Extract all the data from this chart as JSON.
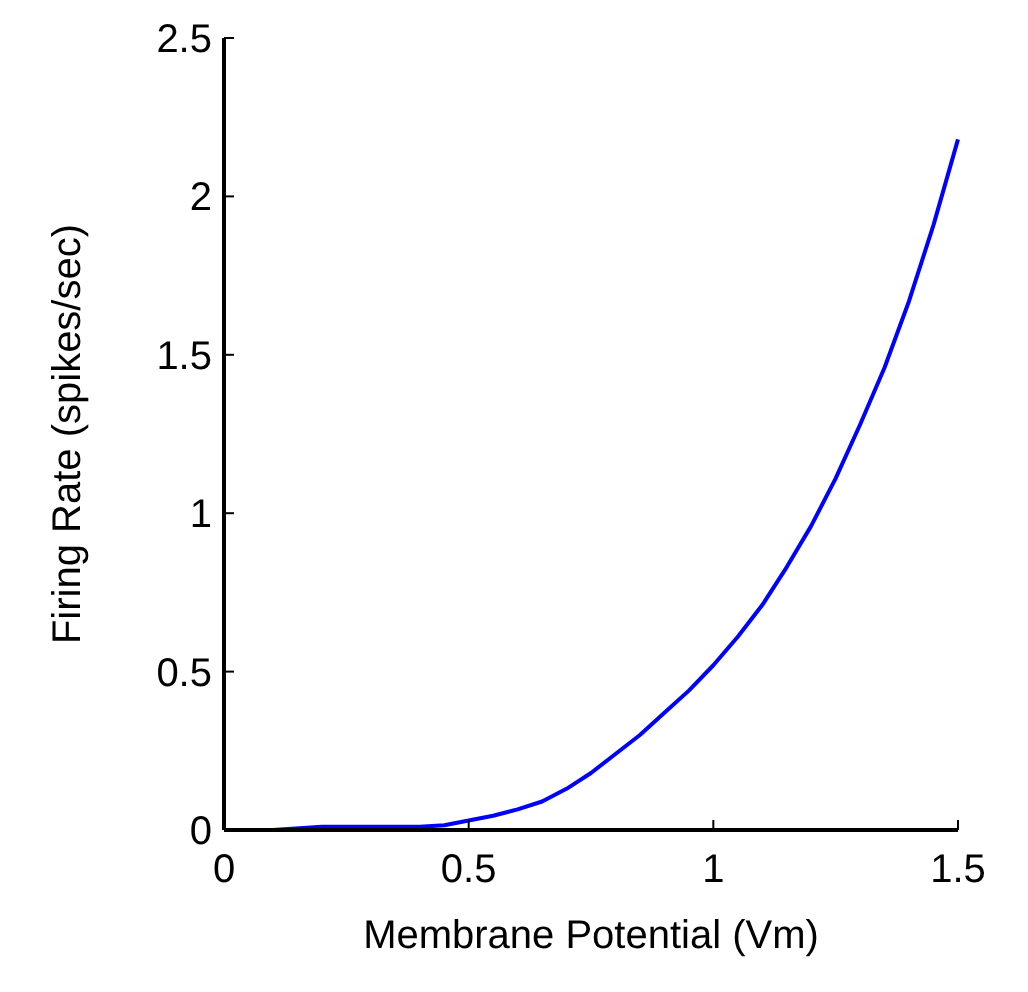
{
  "chart_data": {
    "type": "line",
    "xlabel": "Membrane Potential (Vm)",
    "ylabel": "Firing Rate (spikes/sec)",
    "x": [
      0,
      0.1,
      0.2,
      0.3,
      0.4,
      0.45,
      0.5,
      0.55,
      0.6,
      0.65,
      0.7,
      0.75,
      0.8,
      0.85,
      0.9,
      0.95,
      1.0,
      1.05,
      1.1,
      1.15,
      1.2,
      1.25,
      1.3,
      1.35,
      1.4,
      1.45,
      1.5
    ],
    "series": [
      {
        "color": "#0000ff",
        "values": [
          0,
          0,
          0.01,
          0.01,
          0.01,
          0.015,
          0.03,
          0.045,
          0.065,
          0.09,
          0.13,
          0.18,
          0.24,
          0.3,
          0.37,
          0.44,
          0.52,
          0.61,
          0.71,
          0.83,
          0.96,
          1.11,
          1.28,
          1.46,
          1.67,
          1.91,
          2.18
        ]
      }
    ],
    "xlim": [
      0,
      1.5
    ],
    "xticks": [
      0,
      0.5,
      1,
      1.5
    ],
    "ylim": [
      0,
      2.5
    ],
    "yticks": [
      0,
      0.5,
      1,
      1.5,
      2,
      2.5
    ],
    "grid": false,
    "marker": "none",
    "line_style": "solid"
  }
}
